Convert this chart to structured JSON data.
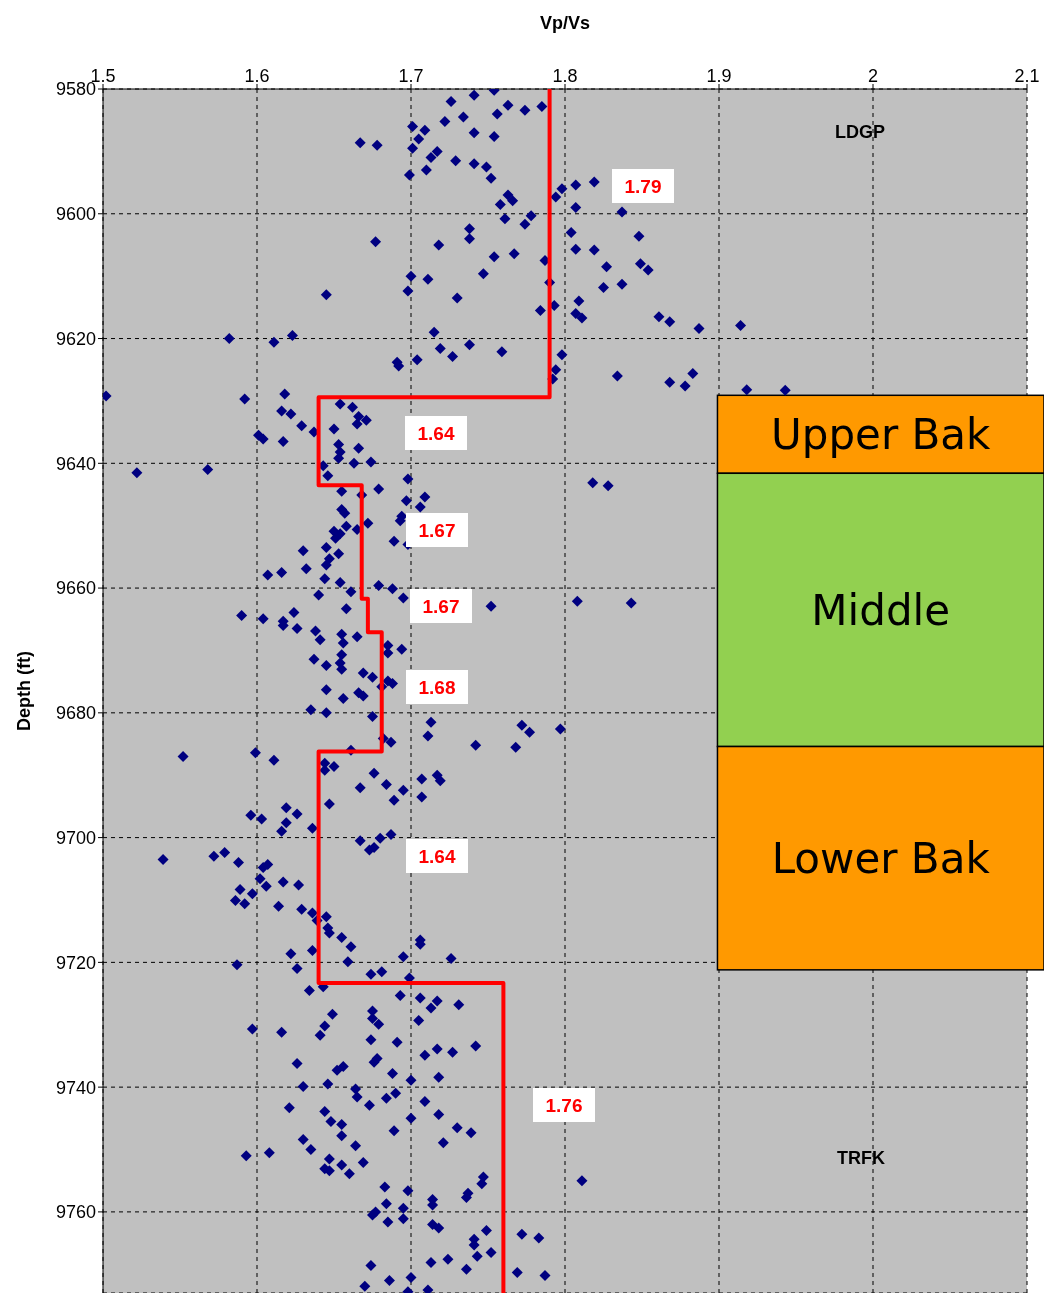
{
  "chart_data": {
    "type": "scatter",
    "xlabel": "Vp/Vs",
    "ylabel": "Depth (ft)",
    "xlim": [
      1.5,
      2.1
    ],
    "xticks": [
      1.5,
      1.6,
      1.7,
      1.8,
      1.9,
      2,
      2.1
    ],
    "ylim": [
      9773,
      9580
    ],
    "yticks": [
      9580,
      9600,
      9620,
      9640,
      9660,
      9680,
      9700,
      9720,
      9740,
      9760
    ],
    "grid": true,
    "marker": "diamond",
    "bands": [
      {
        "axis": "y",
        "from": 9629.1,
        "to": 9641.6,
        "label": "Upper Bak",
        "color": "#ff9900"
      },
      {
        "axis": "y",
        "from": 9641.6,
        "to": 9685.4,
        "label": "Middle",
        "color": "#92d050"
      },
      {
        "axis": "y",
        "from": 9685.4,
        "to": 9721.2,
        "label": "Lower Bak",
        "color": "#ff9900"
      }
    ],
    "annotations": [
      "LDGP",
      "TRFK",
      "1.79",
      "1.64",
      "1.67",
      "1.67",
      "1.68",
      "1.64",
      "1.76"
    ],
    "series": [
      {
        "color": "#000080",
        "x": [
          1.754,
          1.741,
          1.726,
          1.763,
          1.774,
          1.785,
          1.756,
          1.734,
          1.722,
          1.701,
          1.709,
          1.741,
          1.754,
          1.667,
          1.678,
          1.705,
          1.701,
          1.717,
          1.713,
          1.729,
          1.741,
          1.749,
          1.699,
          1.71,
          1.752,
          1.798,
          1.794,
          1.807,
          1.819,
          1.763,
          1.766,
          1.758,
          1.837,
          1.807,
          1.778,
          1.774,
          1.761,
          1.738,
          1.738,
          1.677,
          1.718,
          1.804,
          1.848,
          1.807,
          1.819,
          1.754,
          1.767,
          1.787,
          1.827,
          1.849,
          1.854,
          1.7,
          1.711,
          1.747,
          1.698,
          1.79,
          1.825,
          1.837,
          1.645,
          1.73,
          1.793,
          1.784,
          1.809,
          1.807,
          1.811,
          1.861,
          1.868,
          1.887,
          1.914,
          1.715,
          1.582,
          1.611,
          1.623,
          1.719,
          1.738,
          1.727,
          1.759,
          1.691,
          1.692,
          1.704,
          1.798,
          1.794,
          1.792,
          1.834,
          1.883,
          1.868,
          1.878,
          1.918,
          1.943,
          1.502,
          1.592,
          1.618,
          1.654,
          1.662,
          1.616,
          1.622,
          1.666,
          1.671,
          1.665,
          1.629,
          1.65,
          1.637,
          1.601,
          1.604,
          1.617,
          1.653,
          1.666,
          1.654,
          1.653,
          1.663,
          1.674,
          1.643,
          1.522,
          1.568,
          1.646,
          1.818,
          1.828,
          1.698,
          1.679,
          1.655,
          1.668,
          1.697,
          1.709,
          1.706,
          1.655,
          1.657,
          1.694,
          1.693,
          1.672,
          1.658,
          1.665,
          1.65,
          1.654,
          1.651,
          1.689,
          1.698,
          1.645,
          1.63,
          1.653,
          1.647,
          1.645,
          1.632,
          1.616,
          1.607,
          1.644,
          1.654,
          1.679,
          1.688,
          1.661,
          1.695,
          1.64,
          1.752,
          1.808,
          1.843,
          1.658,
          1.624,
          1.59,
          1.604,
          1.617,
          1.617,
          1.626,
          1.638,
          1.641,
          1.655,
          1.665,
          1.656,
          1.685,
          1.694,
          1.685,
          1.655,
          1.637,
          1.654,
          1.645,
          1.655,
          1.669,
          1.675,
          1.685,
          1.688,
          1.681,
          1.645,
          1.666,
          1.669,
          1.656,
          1.635,
          1.645,
          1.675,
          1.713,
          1.711,
          1.772,
          1.777,
          1.797,
          1.682,
          1.687,
          1.742,
          1.768,
          1.661,
          1.552,
          1.599,
          1.611,
          1.644,
          1.65,
          1.644,
          1.676,
          1.667,
          1.684,
          1.707,
          1.717,
          1.719,
          1.695,
          1.689,
          1.707,
          1.647,
          1.596,
          1.603,
          1.619,
          1.626,
          1.619,
          1.616,
          1.636,
          1.667,
          1.673,
          1.676,
          1.68,
          1.687,
          1.539,
          1.572,
          1.579,
          1.588,
          1.604,
          1.607,
          1.602,
          1.606,
          1.617,
          1.627,
          1.589,
          1.597,
          1.586,
          1.592,
          1.614,
          1.629,
          1.636,
          1.639,
          1.645,
          1.646,
          1.647,
          1.655,
          1.661,
          1.706,
          1.706,
          1.695,
          1.726,
          1.622,
          1.636,
          1.659,
          1.587,
          1.626,
          1.674,
          1.681,
          1.699,
          1.634,
          1.643,
          1.693,
          1.706,
          1.717,
          1.713,
          1.731,
          1.675,
          1.675,
          1.679,
          1.705,
          1.649,
          1.644,
          1.597,
          1.616,
          1.641,
          1.674,
          1.691,
          1.742,
          1.717,
          1.727,
          1.709,
          1.678,
          1.676,
          1.626,
          1.656,
          1.652,
          1.688,
          1.718,
          1.7,
          1.63,
          1.646,
          1.664,
          1.665,
          1.69,
          1.684,
          1.673,
          1.709,
          1.621,
          1.644,
          1.648,
          1.655,
          1.7,
          1.718,
          1.73,
          1.739,
          1.689,
          1.721,
          1.655,
          1.63,
          1.635,
          1.664,
          1.608,
          1.593,
          1.647,
          1.655,
          1.669,
          1.644,
          1.647,
          1.66,
          1.747,
          1.746,
          1.811,
          1.683,
          1.698,
          1.737,
          1.736,
          1.714,
          1.714,
          1.684,
          1.695,
          1.677,
          1.675,
          1.695,
          1.685,
          1.714,
          1.718,
          1.749,
          1.741,
          1.741,
          1.743,
          1.752,
          1.772,
          1.783,
          1.674,
          1.713,
          1.724,
          1.736,
          1.769,
          1.787,
          1.7,
          1.686,
          1.67,
          1.711,
          1.698
        ],
        "values": [
          9580.2,
          9581,
          9582,
          9582.6,
          9583.4,
          9582.8,
          9584,
          9584.5,
          9585.2,
          9586,
          9586.6,
          9587,
          9587.6,
          9588.6,
          9589,
          9588,
          9589.5,
          9590,
          9591,
          9591.5,
          9592,
          9592.5,
          9593.8,
          9593,
          9594.3,
          9596,
          9597.3,
          9595.4,
          9594.9,
          9597,
          9597.9,
          9598.5,
          9599.7,
          9599,
          9600.3,
          9601.7,
          9600.8,
          9602.4,
          9604,
          9604.5,
          9605,
          9603,
          9603.6,
          9605.7,
          9605.8,
          9606.9,
          9606.4,
          9607.5,
          9608.5,
          9608,
          9609,
          9610,
          9610.5,
          9609.6,
          9612.4,
          9611,
          9611.8,
          9611.3,
          9613,
          9613.5,
          9614.7,
          9615.5,
          9614,
          9616,
          9616.7,
          9616.5,
          9617.3,
          9618.4,
          9617.9,
          9619,
          9620,
          9620.6,
          9619.5,
          9621.6,
          9621,
          9622.9,
          9622.1,
          9623.8,
          9624.4,
          9623.4,
          9622.6,
          9625,
          9626.5,
          9626,
          9625.6,
          9627,
          9627.6,
          9628.2,
          9628.3,
          9629.2,
          9629.7,
          9628.9,
          9630.5,
          9631,
          9631.6,
          9632.1,
          9632.5,
          9633.1,
          9633.7,
          9634,
          9634.5,
          9635,
          9635.5,
          9636.1,
          9636.5,
          9637,
          9637.6,
          9638.2,
          9639.2,
          9640,
          9639.8,
          9640.4,
          9641.5,
          9641,
          9642,
          9643.1,
          9643.6,
          9642.5,
          9644.1,
          9644.5,
          9645.1,
          9646,
          9645.4,
          9647,
          9647.4,
          9648,
          9648.5,
          9649.2,
          9649.6,
          9650.1,
          9650.6,
          9650.9,
          9651.3,
          9652,
          9652.5,
          9653,
          9653.5,
          9654,
          9654.5,
          9655.3,
          9656.3,
          9656.9,
          9657.5,
          9657.9,
          9658.5,
          9659.1,
          9659.6,
          9660.1,
          9660.6,
          9661.6,
          9661.1,
          9662.9,
          9662.1,
          9662.4,
          9663.3,
          9663.9,
          9664.4,
          9664.9,
          9665.3,
          9666,
          9666.5,
          9666.9,
          9668.3,
          9667.4,
          9667.8,
          9668.8,
          9669.2,
          9669.8,
          9670.4,
          9670.7,
          9671.4,
          9672,
          9672.4,
          9673,
          9673.6,
          9674.3,
          9674.9,
          9675.3,
          9675.8,
          9676.3,
          9676.8,
          9677.3,
          9677.7,
          9679.5,
          9680,
          9680.6,
          9681.5,
          9683.7,
          9682,
          9683.1,
          9682.6,
          9684.1,
          9684.7,
          9685.2,
          9685.5,
          9686,
          9687,
          9686.4,
          9687.6,
          9688.1,
          9688.6,
          9689.2,
          9689.7,
          9692,
          9691.5,
          9690.6,
          9690,
          9690.9,
          9692.4,
          9694,
          9693.5,
          9694.6,
          9696.4,
          9697,
          9695.2,
          9696.2,
          9697.6,
          9699,
          9698.5,
          9700.5,
          9702,
          9701.6,
          9700.1,
          9699.5,
          9703.5,
          9703,
          9702.4,
          9704,
          9704.8,
          9704.3,
          9706.6,
          9707.8,
          9707.1,
          9707.6,
          9708.3,
          9709,
          9710.1,
          9710.6,
          9711,
          9711.5,
          9712.1,
          9713.3,
          9712.7,
          9714.5,
          9715.3,
          9716,
          9717.5,
          9716.4,
          9717.1,
          9719.1,
          9719.4,
          9718.6,
          9718.1,
          9719.9,
          9720.4,
          9721,
          9721.9,
          9721.5,
          9722.5,
          9724.5,
          9723.9,
          9725.3,
          9725.7,
          9726.2,
          9727.3,
          9726.8,
          9727.8,
          9729,
          9729.9,
          9729.3,
          9728.3,
          9730.2,
          9730.7,
          9731.2,
          9731.7,
          9732.4,
          9732.8,
          9733.4,
          9733.9,
          9734.4,
          9734.9,
          9735.4,
          9736,
          9736.2,
          9736.7,
          9737.3,
          9737.8,
          9738.4,
          9738.9,
          9739.9,
          9739.5,
          9740.3,
          9741.6,
          9741,
          9741.8,
          9742.9,
          9742.3,
          9743.3,
          9743.9,
          9745.5,
          9746,
          9745,
          9744.4,
          9746.5,
          9747.3,
          9747,
          9748.9,
          9747.8,
          9748.4,
          9750,
          9749.4,
          9750.5,
          9751,
          9751.5,
          9752.5,
          9752.1,
          9753.1,
          9753.4,
          9753.9,
          9754.4,
          9755.5,
          9755,
          9756,
          9756.6,
          9757,
          9757.7,
          9758,
          9758.9,
          9758.7,
          9759.4,
          9760,
          9760.5,
          9761.1,
          9761.6,
          9762,
          9762.6,
          9763,
          9764.4,
          9765.3,
          9767.1,
          9766.5,
          9763.6,
          9764.2,
          9768.6,
          9768.1,
          9767.6,
          9769.2,
          9769.7,
          9770.2,
          9770.5,
          9771,
          9771.9,
          9772.5,
          9772.8
        ]
      },
      {
        "type": "line",
        "color": "#ff0000",
        "marker": "none",
        "line_style": "solid",
        "x": [
          1.79,
          1.79,
          1.64,
          1.64,
          1.668,
          1.668,
          1.672,
          1.672,
          1.681,
          1.681,
          1.64,
          1.64,
          1.76,
          1.76
        ],
        "values": [
          9580,
          9629.4,
          9629.4,
          9643.5,
          9643.5,
          9661.7,
          9661.7,
          9667.1,
          9667.1,
          9686.2,
          9686.2,
          9723.3,
          9723.3,
          9773
        ]
      }
    ]
  }
}
